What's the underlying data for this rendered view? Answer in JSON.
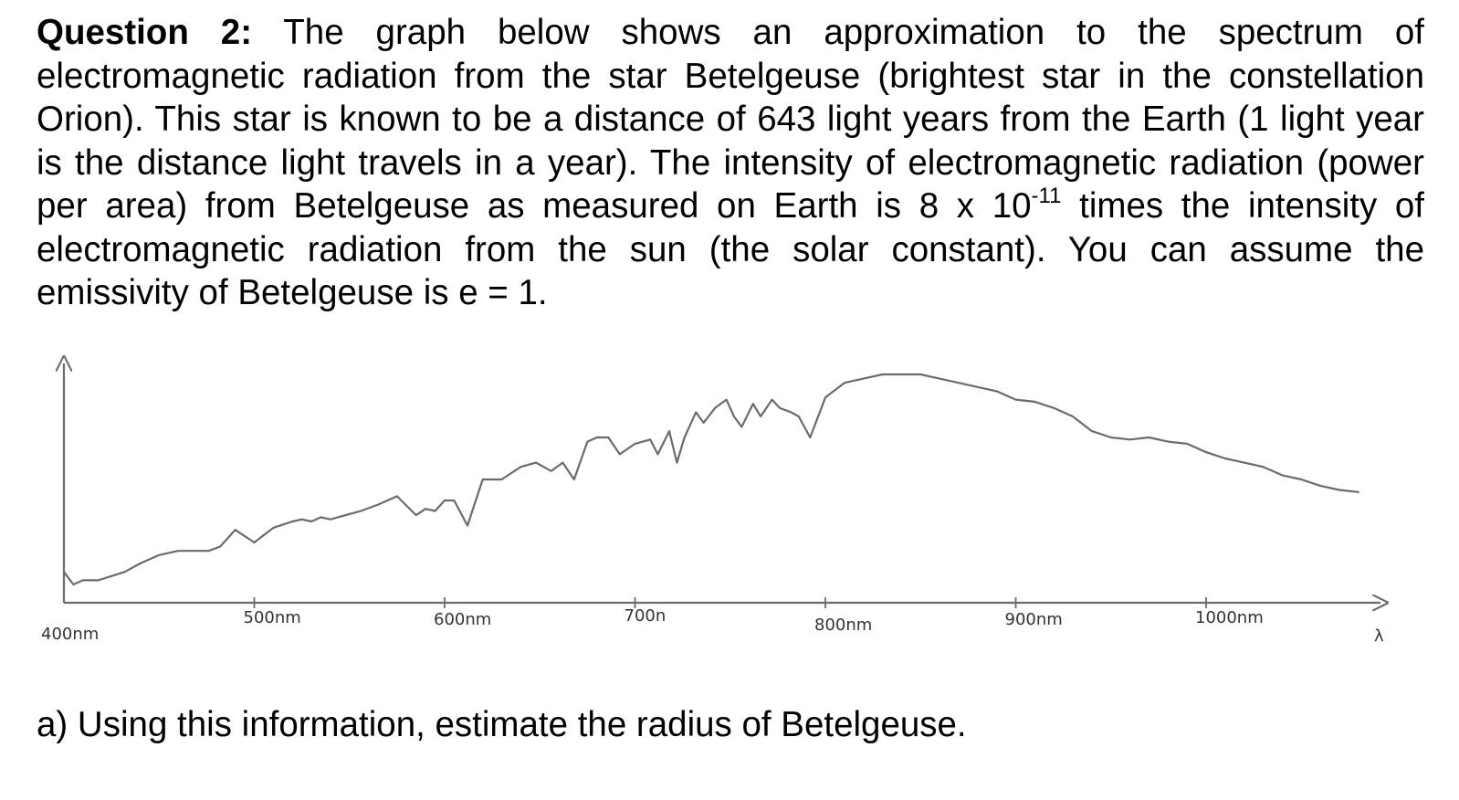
{
  "question": {
    "label": "Question 2:",
    "text_before_exponent": " The graph below shows an approximation to the spectrum of electromagnetic radiation from the star Betelgeuse (brightest star in the constellation Orion). This star is known to be a distance of 643 light years from the Earth (1 light year is the distance light travels in a year). The intensity of electromagnetic radiation (power per area) from Betelgeuse as measured on Earth is 8 x 10",
    "exponent": "-11",
    "text_after_exponent": " times the intensity of electromagnetic radiation from the sun (the solar constant). You can assume the emissivity of Betelgeuse is e = 1."
  },
  "chart_data": {
    "type": "line",
    "xlabel": "λ",
    "ylabel": "",
    "tick_labels": [
      "400nm",
      "500nm",
      "600nm",
      "700n",
      "800nm",
      "900nm",
      "1000nm"
    ],
    "ticks_nm": [
      400,
      500,
      600,
      700,
      800,
      900,
      1000
    ],
    "xlim": [
      400,
      1090
    ],
    "ylim": [
      0,
      1
    ],
    "grid": false,
    "legend": "none",
    "series": [
      {
        "color": "#6b6b6b",
        "x": [
          400,
          405,
          410,
          418,
          425,
          432,
          440,
          450,
          460,
          468,
          476,
          482,
          490,
          500,
          510,
          520,
          525,
          530,
          535,
          540,
          548,
          556,
          565,
          575,
          585,
          590,
          595,
          600,
          605,
          612,
          620,
          630,
          640,
          648,
          656,
          662,
          668,
          675,
          680,
          686,
          692,
          700,
          708,
          712,
          718,
          722,
          726,
          732,
          736,
          742,
          748,
          752,
          756,
          762,
          766,
          772,
          776,
          782,
          786,
          792,
          800,
          810,
          820,
          830,
          840,
          850,
          860,
          870,
          880,
          890,
          900,
          910,
          920,
          930,
          940,
          950,
          960,
          970,
          980,
          990,
          1000,
          1010,
          1020,
          1030,
          1040,
          1050,
          1060,
          1070,
          1080
        ],
        "values": [
          0.06,
          0.0,
          0.02,
          0.02,
          0.04,
          0.06,
          0.1,
          0.14,
          0.16,
          0.16,
          0.16,
          0.18,
          0.26,
          0.2,
          0.27,
          0.3,
          0.31,
          0.3,
          0.32,
          0.31,
          0.33,
          0.35,
          0.38,
          0.42,
          0.33,
          0.36,
          0.35,
          0.4,
          0.4,
          0.28,
          0.5,
          0.5,
          0.56,
          0.58,
          0.54,
          0.58,
          0.5,
          0.68,
          0.7,
          0.7,
          0.62,
          0.67,
          0.69,
          0.62,
          0.73,
          0.58,
          0.7,
          0.82,
          0.77,
          0.84,
          0.88,
          0.8,
          0.75,
          0.86,
          0.8,
          0.88,
          0.84,
          0.82,
          0.8,
          0.7,
          0.89,
          0.96,
          0.98,
          1.0,
          1.0,
          1.0,
          0.98,
          0.96,
          0.94,
          0.92,
          0.88,
          0.87,
          0.84,
          0.8,
          0.73,
          0.7,
          0.69,
          0.7,
          0.68,
          0.67,
          0.63,
          0.6,
          0.58,
          0.56,
          0.52,
          0.5,
          0.47,
          0.45,
          0.44
        ]
      }
    ]
  },
  "part_a": {
    "text": "a) Using this information, estimate the radius of Betelgeuse."
  }
}
